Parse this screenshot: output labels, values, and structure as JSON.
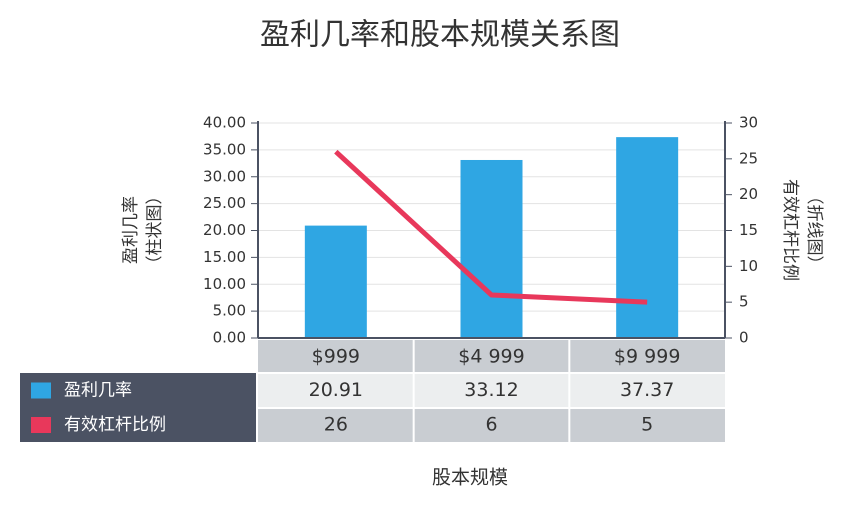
{
  "chart_data": {
    "type": "bar",
    "title": "盈利几率和股本规模关系图",
    "x_label": "股本规模",
    "y_label": [
      "盈利几率",
      "（柱状图）"
    ],
    "y2_label": [
      "有效杠杆比例",
      "（折线图）"
    ],
    "categories": [
      "$999",
      "$4 999",
      "$9 999"
    ],
    "series": [
      {
        "name": "盈利几率",
        "type": "bar",
        "color": "#2fa6e3",
        "values": [
          20.91,
          33.12,
          37.37
        ]
      },
      {
        "name": "有效杠杆比例",
        "type": "line",
        "axis": "y2",
        "color": "#e8385b",
        "values": [
          26,
          6,
          5
        ]
      }
    ],
    "ylim": [
      0,
      40
    ],
    "yticks": [
      {
        "value": 0,
        "label": "0.00"
      },
      {
        "value": 5,
        "label": "5.00"
      },
      {
        "value": 10,
        "label": "10.00"
      },
      {
        "value": 15,
        "label": "15.00"
      },
      {
        "value": 20,
        "label": "20.00"
      },
      {
        "value": 25,
        "label": "25.00"
      },
      {
        "value": 30,
        "label": "30.00"
      },
      {
        "value": 35,
        "label": "35.00"
      },
      {
        "value": 40,
        "label": "40.00"
      }
    ],
    "y2lim": [
      0,
      30
    ],
    "y2ticks": [
      0,
      5,
      10,
      15,
      20,
      25,
      30
    ],
    "grid": true
  }
}
